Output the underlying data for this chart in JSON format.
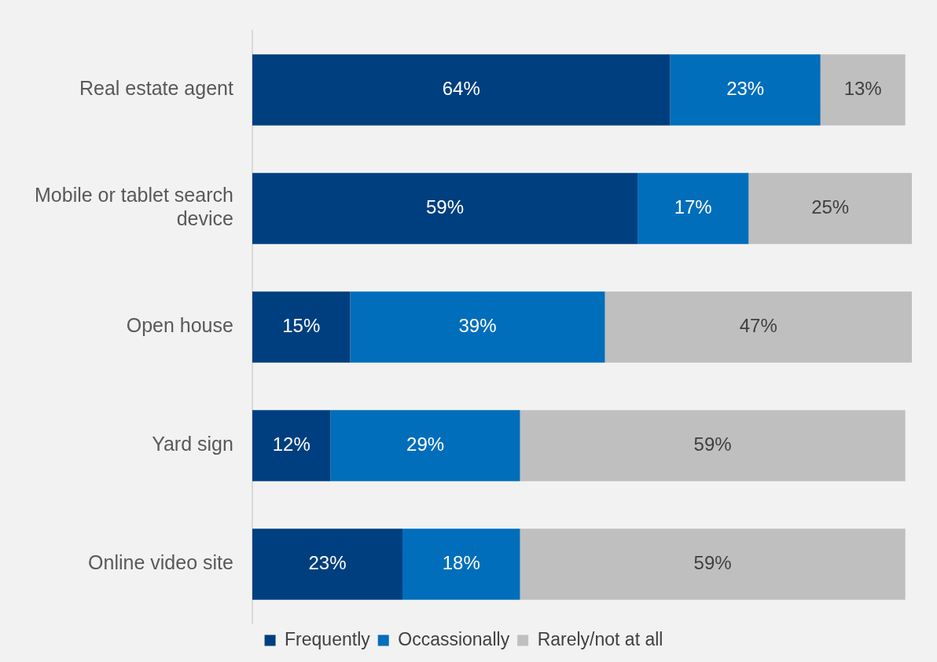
{
  "chart_data": {
    "type": "bar",
    "orientation": "horizontal",
    "stacked": true,
    "tick_labels": "y",
    "grid": false,
    "legend": "bottom",
    "categories": [
      "Real estate agent",
      "Mobile or tablet search device",
      "Open house",
      "Yard sign",
      "Online video site"
    ],
    "series": [
      {
        "name": "Frequently",
        "color": "#003f7f",
        "values": [
          64,
          59,
          15,
          12,
          23
        ],
        "value_labels": [
          "64%",
          "59%",
          "15%",
          "12%",
          "23%"
        ]
      },
      {
        "name": "Occassionally",
        "color": "#006ebb",
        "values": [
          23,
          17,
          39,
          29,
          18
        ],
        "value_labels": [
          "23%",
          "17%",
          "39%",
          "29%",
          "18%"
        ]
      },
      {
        "name": "Rarely/not at all",
        "color": "#bfbfbf",
        "values": [
          13,
          25,
          47,
          59,
          59
        ],
        "value_labels": [
          "13%",
          "25%",
          "47%",
          "59%",
          "59%"
        ]
      }
    ]
  }
}
